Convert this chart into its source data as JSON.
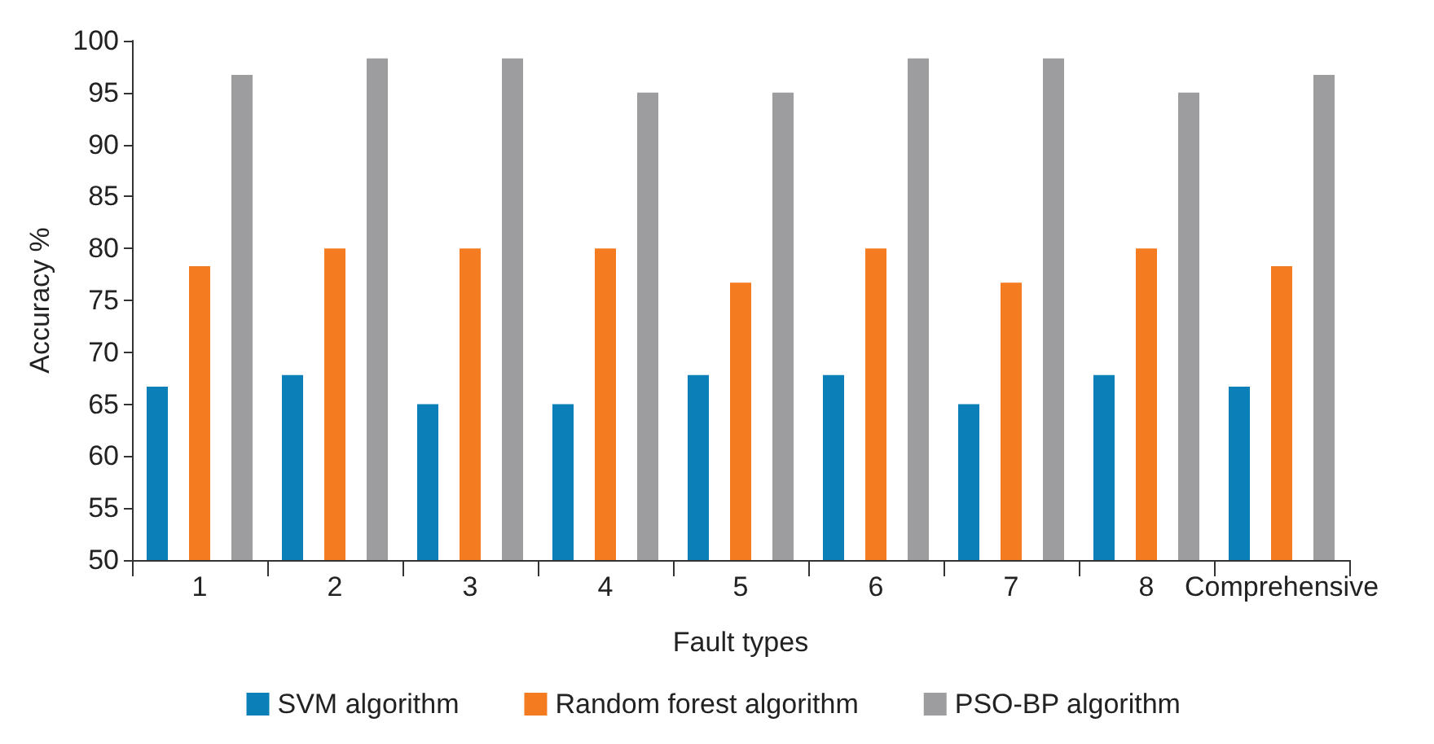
{
  "chart_data": {
    "type": "bar",
    "xlabel": "Fault types",
    "ylabel": "Accuracy %",
    "categories": [
      "1",
      "2",
      "3",
      "4",
      "5",
      "6",
      "7",
      "8",
      "Comprehensive"
    ],
    "series": [
      {
        "name": "SVM algorithm",
        "color": "#0b80b8",
        "values": [
          66.7,
          67.8,
          65,
          65,
          67.8,
          67.8,
          65,
          67.8,
          66.7
        ]
      },
      {
        "name": "Random forest algorithm",
        "color": "#f47b20",
        "values": [
          78.3,
          80,
          80,
          80,
          76.7,
          80,
          76.7,
          80,
          78.3
        ]
      },
      {
        "name": "PSO-BP algorithm",
        "color": "#9d9d9f",
        "values": [
          96.7,
          98.3,
          98.3,
          95,
          95,
          98.3,
          98.3,
          95,
          96.7
        ]
      }
    ],
    "ylim": [
      50,
      100
    ],
    "yticks": [
      50,
      55,
      60,
      65,
      70,
      75,
      80,
      85,
      90,
      95,
      100
    ],
    "grid": false,
    "legend": "bottom"
  }
}
